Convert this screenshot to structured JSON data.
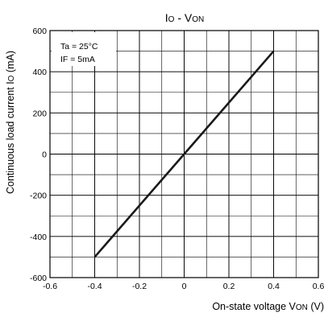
{
  "chart_data": {
    "type": "line",
    "title": {
      "main": "I",
      "sub": "O",
      "sep": " - V",
      "sub2": "ON"
    },
    "xlabel": {
      "pre": "On-state voltage V",
      "sub": "ON",
      "post": " (V)"
    },
    "ylabel": {
      "pre": "Continuous load current I",
      "sub": "O",
      "post": " (mA)"
    },
    "xlim": [
      -0.6,
      0.6
    ],
    "ylim": [
      -600,
      600
    ],
    "x_ticks": [
      -0.6,
      -0.4,
      -0.2,
      0,
      0.2,
      0.4,
      0.6
    ],
    "x_tick_labels": [
      "-0.6",
      "-0.4",
      "-0.2",
      "0",
      "0.2",
      "0.4",
      "0.6"
    ],
    "y_ticks": [
      600,
      400,
      200,
      0,
      -200,
      -400,
      -600
    ],
    "y_tick_labels": [
      "600",
      "400",
      "200",
      "0",
      "-200",
      "-400",
      "-600"
    ],
    "x_minor_step": 0.1,
    "y_minor_step": 100,
    "grid": true,
    "annotations": [
      "Ta = 25°C",
      "IF = 5mA"
    ],
    "series": [
      {
        "x": [
          -0.4,
          0,
          0.4
        ],
        "y": [
          -500,
          0,
          500
        ]
      }
    ],
    "colors": {
      "line": "#1a1a1a",
      "grid": "#000000",
      "background": "#ffffff"
    }
  }
}
